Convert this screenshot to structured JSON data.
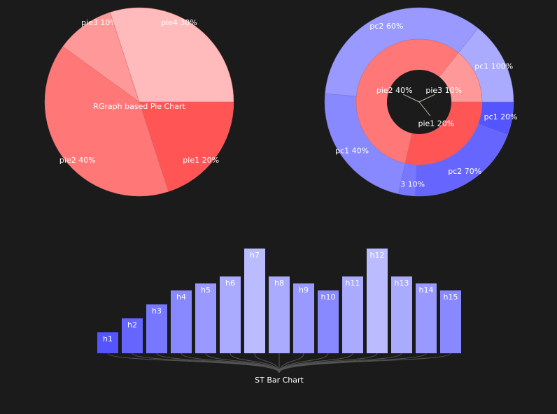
{
  "background": "#1b1b1b",
  "chart_data": [
    {
      "type": "pie",
      "title": "RGraph based Pie Chart",
      "slices": [
        {
          "label": "pie1 20%",
          "value": 20,
          "color": "#ff5555"
        },
        {
          "label": "pie2 40%",
          "value": 40,
          "color": "#ff7777"
        },
        {
          "label": "pie3 10%",
          "value": 10,
          "color": "#ff9999"
        },
        {
          "label": "pie4 30%",
          "value": 30,
          "color": "#ffbbbb"
        }
      ]
    },
    {
      "type": "pie",
      "title": "",
      "inner_ring": [
        {
          "label": "pie1 20%",
          "value": 20,
          "color": "#ff5555"
        },
        {
          "label": "pie2 40%",
          "value": 40,
          "color": "#ff7777"
        },
        {
          "label": "pie3 10%",
          "value": 10,
          "color": "#ff9999"
        }
      ],
      "outer_ring": [
        {
          "parent": "pie1 20%",
          "label": "pc1 20%",
          "value": 20,
          "color": "#5555ff"
        },
        {
          "parent": "pie1 20%",
          "label": "pc2 70%",
          "value": 70,
          "color": "#6666ff"
        },
        {
          "parent": "pie1 20%",
          "label": "pc3 10%",
          "value": 10,
          "color": "#7777ff"
        },
        {
          "parent": "pie2 40%",
          "label": "pc1 40%",
          "value": 40,
          "color": "#8888ff"
        },
        {
          "parent": "pie2 40%",
          "label": "pc2 60%",
          "value": 60,
          "color": "#9999ff"
        },
        {
          "parent": "pie3 10%",
          "label": "pc1 100%",
          "value": 100,
          "color": "#aaaaff"
        }
      ]
    },
    {
      "type": "bar",
      "title": "ST Bar Chart",
      "categories": [
        "h1",
        "h2",
        "h3",
        "h4",
        "h5",
        "h6",
        "h7",
        "h8",
        "h9",
        "h10",
        "h11",
        "h12",
        "h13",
        "h14",
        "h15"
      ],
      "values": [
        3,
        5,
        7,
        9,
        10,
        11,
        15,
        11,
        10,
        9,
        11,
        15,
        11,
        10,
        9
      ],
      "colors": [
        "#5555ff",
        "#6666ff",
        "#7777ff",
        "#8888ff",
        "#9999ff",
        "#aaaaff",
        "#bbbbff",
        "#aaaaff",
        "#9999ff",
        "#8888ff",
        "#aaaaff",
        "#bbbbff",
        "#aaaaff",
        "#9999ff",
        "#8888ff"
      ],
      "ylim": [
        0,
        15
      ]
    }
  ]
}
